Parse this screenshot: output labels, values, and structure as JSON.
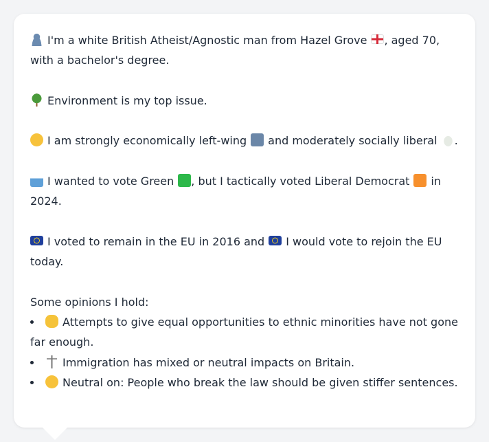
{
  "profile": {
    "intro": [
      "I'm a white British Atheist/Agnostic man from Hazel Grove",
      ", aged 70, with a bachelor's degree."
    ],
    "issue": "Environment is my top issue.",
    "ideology": [
      "I am strongly economically left-wing",
      "and moderately socially liberal",
      "."
    ],
    "vote": [
      "I wanted to vote Green",
      ", but I tactically voted Liberal Democrat",
      "in 2024."
    ],
    "eu": [
      "I voted to remain in the EU in 2016 and",
      "I would vote to rejoin the EU today."
    ],
    "opinions_heading": "Some opinions I hold:",
    "opinions": [
      "Attempts to give equal opportunities to ethnic minorities have not gone far enough.",
      "Immigration has mixed or neutral impacts on Britain.",
      "Neutral on: People who break the law should be given stiffer sentences."
    ]
  }
}
